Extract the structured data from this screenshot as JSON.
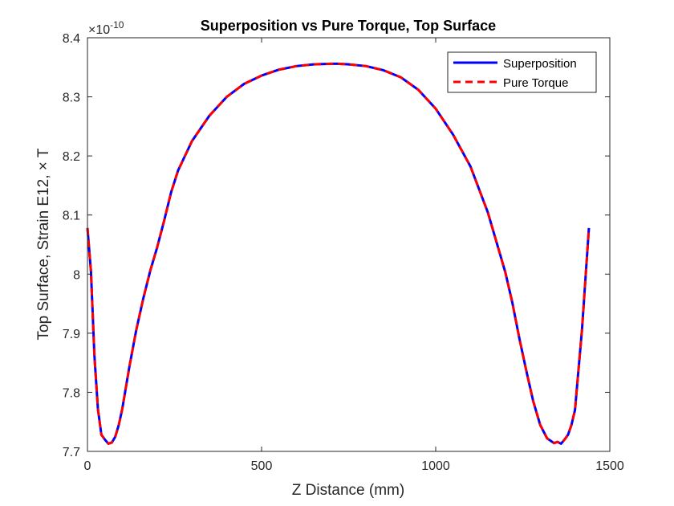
{
  "chart_data": {
    "type": "line",
    "title": "Superposition vs Pure Torque, Top Surface",
    "xlabel": "Z Distance (mm)",
    "ylabel": "Top Surface, Strain E12, × T",
    "y_exponent_base": "×10",
    "y_exponent_power": "-10",
    "xlim": [
      0,
      1500
    ],
    "ylim": [
      7.7,
      8.4
    ],
    "x_ticks": [
      0,
      500,
      1000,
      1500
    ],
    "x_tick_labels": [
      "0",
      "500",
      "1000",
      "1500"
    ],
    "y_ticks": [
      7.7,
      7.8,
      7.9,
      8.0,
      8.1,
      8.2,
      8.3,
      8.4
    ],
    "y_tick_labels": [
      "7.7",
      "7.8",
      "7.9",
      "8",
      "8.1",
      "8.2",
      "8.3",
      "8.4"
    ],
    "grid": false,
    "legend_position": "top-right",
    "x": [
      0,
      10,
      20,
      30,
      40,
      50,
      60,
      70,
      80,
      90,
      100,
      120,
      140,
      160,
      180,
      200,
      220,
      240,
      260,
      280,
      300,
      350,
      400,
      450,
      500,
      550,
      600,
      650,
      700,
      720,
      750,
      800,
      850,
      900,
      950,
      1000,
      1050,
      1100,
      1150,
      1200,
      1220,
      1240,
      1260,
      1280,
      1300,
      1320,
      1340,
      1350,
      1360,
      1370,
      1380,
      1390,
      1400,
      1420,
      1440
    ],
    "series": [
      {
        "name": "Superposition",
        "color": "#0000ff",
        "style": "solid",
        "values": [
          8.078,
          8.005,
          7.862,
          7.772,
          7.728,
          7.72,
          7.713,
          7.715,
          7.725,
          7.745,
          7.772,
          7.842,
          7.905,
          7.958,
          8.005,
          8.045,
          8.09,
          8.138,
          8.175,
          8.2,
          8.225,
          8.268,
          8.3,
          8.322,
          8.336,
          8.346,
          8.352,
          8.355,
          8.356,
          8.356,
          8.355,
          8.352,
          8.345,
          8.333,
          8.312,
          8.28,
          8.236,
          8.182,
          8.104,
          8.003,
          7.952,
          7.892,
          7.837,
          7.785,
          7.745,
          7.722,
          7.714,
          7.716,
          7.713,
          7.72,
          7.728,
          7.745,
          7.77,
          7.905,
          8.078
        ]
      },
      {
        "name": "Pure Torque",
        "color": "#ff0000",
        "style": "dashed",
        "values": [
          8.078,
          8.005,
          7.862,
          7.772,
          7.728,
          7.72,
          7.713,
          7.715,
          7.725,
          7.745,
          7.772,
          7.842,
          7.905,
          7.958,
          8.005,
          8.045,
          8.09,
          8.138,
          8.175,
          8.2,
          8.225,
          8.268,
          8.3,
          8.322,
          8.336,
          8.346,
          8.352,
          8.355,
          8.356,
          8.356,
          8.355,
          8.352,
          8.345,
          8.333,
          8.312,
          8.28,
          8.236,
          8.182,
          8.104,
          8.003,
          7.952,
          7.892,
          7.837,
          7.785,
          7.745,
          7.722,
          7.714,
          7.716,
          7.713,
          7.72,
          7.728,
          7.745,
          7.77,
          7.905,
          8.078
        ]
      }
    ]
  }
}
